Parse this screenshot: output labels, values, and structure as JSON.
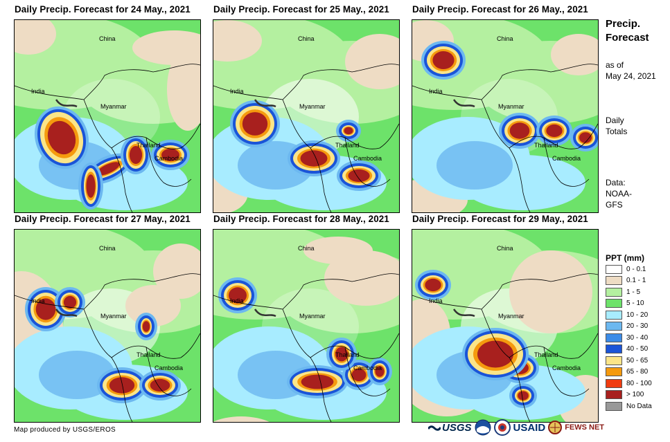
{
  "panels": [
    {
      "title": "Daily Precip. Forecast for 24 May., 2021"
    },
    {
      "title": "Daily Precip. Forecast for 25 May., 2021"
    },
    {
      "title": "Daily Precip. Forecast for 26 May., 2021"
    },
    {
      "title": "Daily Precip. Forecast for 27 May., 2021"
    },
    {
      "title": "Daily Precip. Forecast for 28 May., 2021"
    },
    {
      "title": "Daily Precip. Forecast for 29 May., 2021"
    }
  ],
  "map_labels": {
    "china": "China",
    "india": "India",
    "myanmar": "Myanmar",
    "thailand": "Thailand",
    "cambodia": "Cambodia"
  },
  "side": {
    "title_line1": "Precip.",
    "title_line2": "Forecast",
    "asof_line1": "as of",
    "asof_line2": "May 24, 2021",
    "daily_line1": "Daily",
    "daily_line2": "Totals",
    "data_line1": "Data:",
    "data_line2": "NOAA-",
    "data_line3": "GFS"
  },
  "legend": {
    "title": "PPT (mm)",
    "items": [
      {
        "label": "0 - 0.1",
        "color": "#ffffff"
      },
      {
        "label": "0.1 - 1",
        "color": "#eedcc4"
      },
      {
        "label": "1 - 5",
        "color": "#b4f0a0"
      },
      {
        "label": "5 - 10",
        "color": "#6de26a"
      },
      {
        "label": "10 - 20",
        "color": "#a8ecff"
      },
      {
        "label": "20 - 30",
        "color": "#6cb8f0"
      },
      {
        "label": "30 - 40",
        "color": "#3c8ce8"
      },
      {
        "label": "40 - 50",
        "color": "#1a54d8"
      },
      {
        "label": "50 - 65",
        "color": "#fbe588"
      },
      {
        "label": "65 - 80",
        "color": "#f59a0e"
      },
      {
        "label": "80 - 100",
        "color": "#f03c10"
      },
      {
        "label": "> 100",
        "color": "#a8201e"
      },
      {
        "label": "No Data",
        "color": "#999999"
      }
    ]
  },
  "credit": "Map produced by USGS/EROS",
  "logos": {
    "usgs": "USGS",
    "usaid": "USAID",
    "fewsnet": "FEWS NET"
  }
}
